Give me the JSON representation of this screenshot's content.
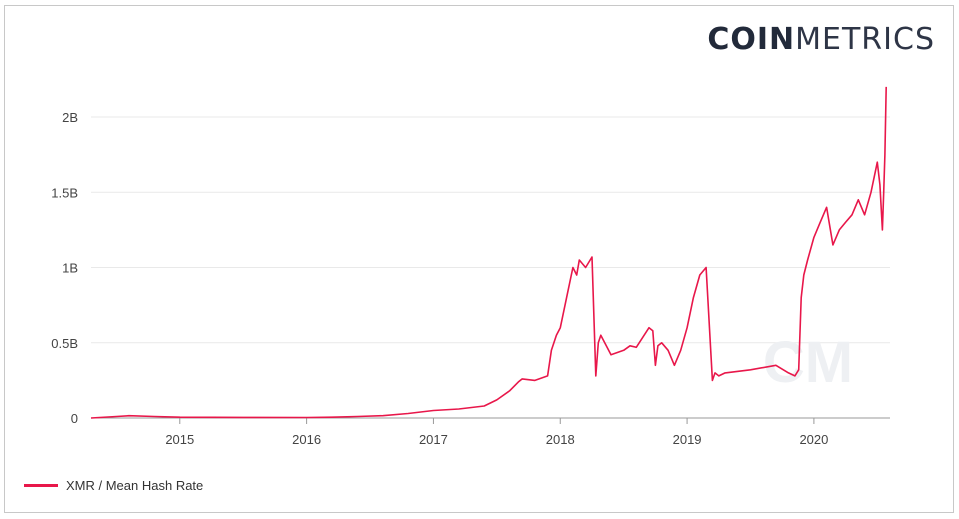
{
  "logo": {
    "part_bold": "COIN",
    "part_light": "METRICS"
  },
  "watermark": "CM",
  "colors": {
    "series": "#e8174a",
    "grid": "#e9e9e9",
    "axis": "#999999"
  },
  "chart_data": {
    "type": "line",
    "title": "",
    "xlabel": "",
    "ylabel": "",
    "x_ticks": [
      "2015",
      "2016",
      "2017",
      "2018",
      "2019",
      "2020"
    ],
    "y_ticks": [
      "0",
      "0.5B",
      "1B",
      "1.5B",
      "2B"
    ],
    "xlim": [
      2014.3,
      2020.6
    ],
    "ylim": [
      0,
      2.2
    ],
    "y_unit": "billions",
    "grid": true,
    "legend_position": "bottom-left",
    "series": [
      {
        "name": "XMR / Mean Hash Rate",
        "x": [
          2014.3,
          2014.5,
          2014.6,
          2014.8,
          2015.0,
          2015.5,
          2016.0,
          2016.2,
          2016.4,
          2016.6,
          2016.8,
          2017.0,
          2017.2,
          2017.4,
          2017.5,
          2017.6,
          2017.67,
          2017.7,
          2017.8,
          2017.9,
          2017.93,
          2017.97,
          2018.0,
          2018.05,
          2018.1,
          2018.13,
          2018.15,
          2018.2,
          2018.25,
          2018.28,
          2018.3,
          2018.32,
          2018.4,
          2018.5,
          2018.55,
          2018.6,
          2018.7,
          2018.73,
          2018.75,
          2018.77,
          2018.8,
          2018.85,
          2018.9,
          2018.95,
          2019.0,
          2019.05,
          2019.1,
          2019.15,
          2019.2,
          2019.22,
          2019.25,
          2019.3,
          2019.5,
          2019.7,
          2019.8,
          2019.85,
          2019.88,
          2019.9,
          2019.92,
          2019.95,
          2020.0,
          2020.05,
          2020.1,
          2020.15,
          2020.2,
          2020.25,
          2020.3,
          2020.35,
          2020.4,
          2020.45,
          2020.5,
          2020.52,
          2020.54,
          2020.55,
          2020.56,
          2020.57
        ],
        "values": [
          0.0,
          0.01,
          0.015,
          0.01,
          0.005,
          0.004,
          0.003,
          0.005,
          0.01,
          0.015,
          0.03,
          0.05,
          0.06,
          0.08,
          0.12,
          0.18,
          0.24,
          0.26,
          0.25,
          0.28,
          0.45,
          0.55,
          0.6,
          0.8,
          1.0,
          0.95,
          1.05,
          1.0,
          1.07,
          0.28,
          0.5,
          0.55,
          0.42,
          0.45,
          0.48,
          0.47,
          0.6,
          0.58,
          0.35,
          0.48,
          0.5,
          0.45,
          0.35,
          0.45,
          0.6,
          0.8,
          0.95,
          1.0,
          0.25,
          0.3,
          0.28,
          0.3,
          0.32,
          0.35,
          0.3,
          0.28,
          0.32,
          0.8,
          0.95,
          1.05,
          1.2,
          1.3,
          1.4,
          1.15,
          1.25,
          1.3,
          1.35,
          1.45,
          1.35,
          1.5,
          1.7,
          1.55,
          1.25,
          1.5,
          1.75,
          2.2
        ]
      }
    ]
  }
}
